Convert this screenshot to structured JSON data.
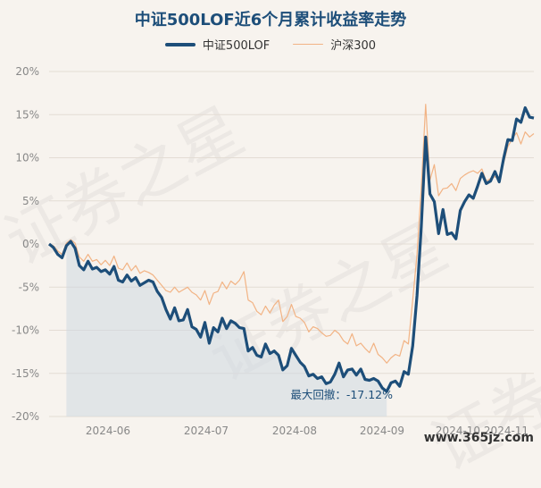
{
  "chart_data": {
    "type": "line",
    "title": "中证500LOF近6个月累计收益率走势",
    "y_unit": "%",
    "ylim": [
      -20,
      20
    ],
    "y_ticks": [
      "20%",
      "15%",
      "10%",
      "5%",
      "0%",
      "-5%",
      "-10%",
      "-15%",
      "-20%"
    ],
    "x_ticks": [
      "2024-06",
      "2024-07",
      "2024-08",
      "2024-09",
      "2024-10",
      "2024-11"
    ],
    "legend_position": "top-center",
    "grid": "horizontal",
    "series": [
      {
        "name": "中证500LOF",
        "color": "#1d4e79",
        "values": [
          0,
          -0.4,
          -1.2,
          -1.6,
          -0.2,
          0.3,
          -0.5,
          -2.5,
          -3.0,
          -2.0,
          -2.9,
          -2.7,
          -3.2,
          -3.0,
          -3.5,
          -2.6,
          -4.2,
          -4.4,
          -3.6,
          -4.3,
          -3.9,
          -4.8,
          -4.5,
          -4.2,
          -4.4,
          -5.5,
          -6.2,
          -7.6,
          -8.7,
          -7.4,
          -8.9,
          -8.8,
          -7.6,
          -9.6,
          -9.9,
          -10.8,
          -9.1,
          -11.5,
          -9.7,
          -10.2,
          -8.6,
          -9.8,
          -8.9,
          -9.2,
          -9.7,
          -9.8,
          -12.4,
          -12.0,
          -12.9,
          -13.1,
          -11.6,
          -12.7,
          -12.4,
          -12.9,
          -14.6,
          -14.1,
          -12.1,
          -12.9,
          -13.7,
          -14.2,
          -15.3,
          -15.1,
          -15.6,
          -15.4,
          -16.2,
          -16.0,
          -15.1,
          -13.8,
          -15.4,
          -14.6,
          -14.5,
          -15.2,
          -14.5,
          -15.7,
          -15.8,
          -15.6,
          -15.9,
          -16.7,
          -17.1,
          -16.1,
          -15.9,
          -16.5,
          -14.8,
          -15.1,
          -11.8,
          -6.0,
          2.0,
          12.4,
          5.8,
          4.9,
          1.2,
          4.0,
          1.1,
          1.3,
          0.6,
          3.9,
          4.9,
          5.7,
          5.3,
          6.7,
          8.2,
          7.0,
          7.3,
          8.4,
          7.2,
          9.9,
          12.1,
          12.0,
          14.5,
          14.1,
          15.8,
          14.7,
          14.6
        ]
      },
      {
        "name": "沪深300",
        "color": "#f2b384",
        "values": [
          0,
          -0.2,
          -0.8,
          -1.2,
          0.1,
          0.5,
          0.1,
          -1.5,
          -2.0,
          -1.2,
          -2.0,
          -1.8,
          -2.4,
          -1.9,
          -2.5,
          -1.4,
          -2.8,
          -3.0,
          -2.2,
          -3.1,
          -2.5,
          -3.4,
          -3.1,
          -3.3,
          -3.6,
          -4.2,
          -4.8,
          -5.4,
          -5.6,
          -5.0,
          -5.6,
          -5.3,
          -5.0,
          -5.6,
          -5.9,
          -6.5,
          -5.4,
          -7.0,
          -5.7,
          -5.5,
          -4.4,
          -5.2,
          -4.3,
          -4.7,
          -4.2,
          -3.2,
          -6.5,
          -6.8,
          -7.8,
          -8.2,
          -7.2,
          -8.0,
          -7.1,
          -6.5,
          -9.0,
          -8.4,
          -7.0,
          -8.4,
          -8.6,
          -9.1,
          -10.2,
          -9.6,
          -9.8,
          -10.3,
          -10.7,
          -10.6,
          -10.0,
          -10.4,
          -11.2,
          -11.6,
          -10.4,
          -11.8,
          -11.5,
          -12.1,
          -12.6,
          -11.5,
          -12.8,
          -13.2,
          -13.8,
          -13.2,
          -12.8,
          -13.0,
          -11.2,
          -11.6,
          -6.5,
          -1.2,
          6.5,
          16.2,
          7.4,
          9.2,
          5.6,
          6.4,
          6.5,
          7.0,
          6.2,
          7.6,
          8.0,
          8.3,
          8.5,
          8.2,
          8.7,
          7.3,
          7.6,
          7.8,
          7.5,
          9.4,
          11.3,
          12.2,
          12.9,
          11.6,
          13.0,
          12.4,
          12.8
        ]
      }
    ],
    "annotation": {
      "text": "最大回撤：-17.12%",
      "value": -17.12
    }
  },
  "watermark": {
    "text": "证券之星",
    "url_text": "www.365jz.com"
  }
}
